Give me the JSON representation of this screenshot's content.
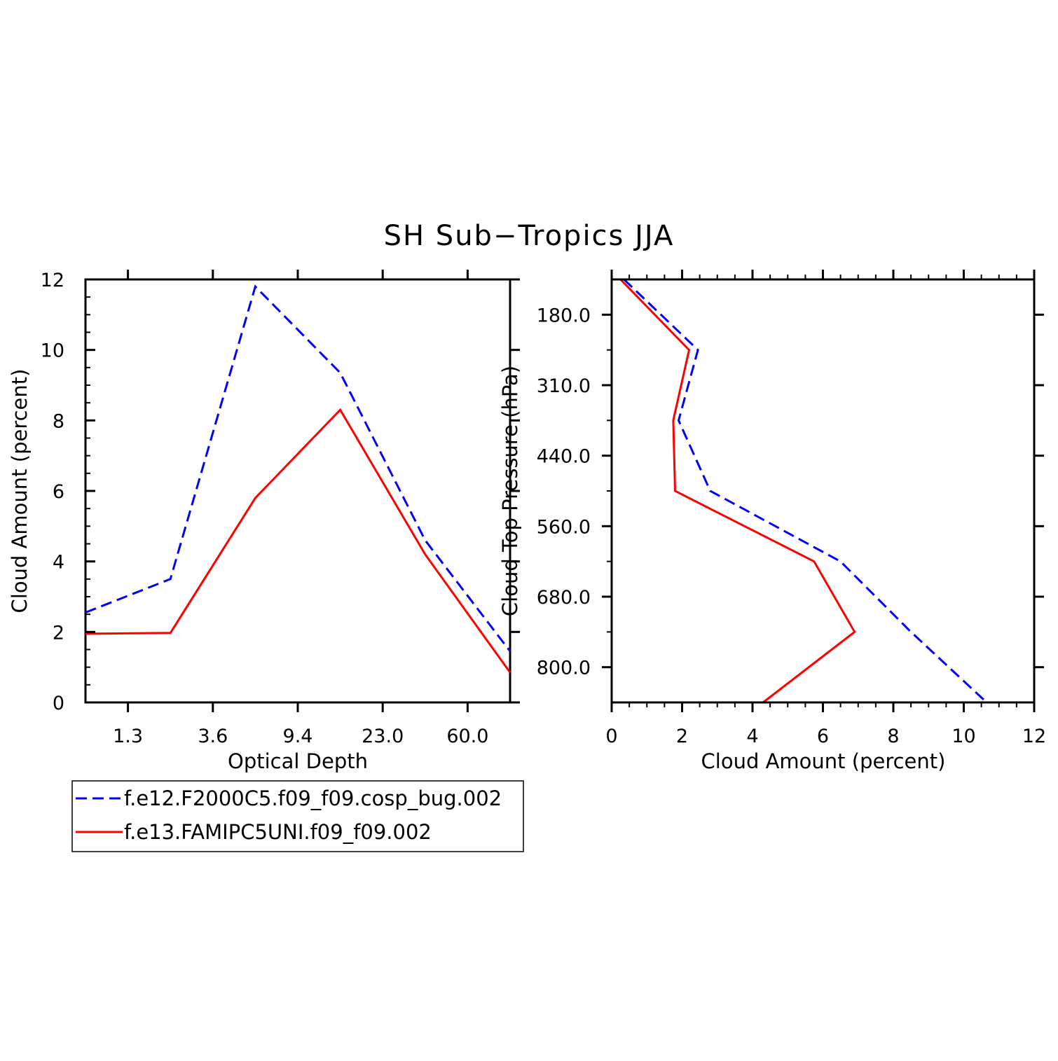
{
  "title": "SH Sub−Tropics JJA",
  "series_styles": [
    {
      "name": "f.e12.F2000C5.f09_f09.cosp_bug.002",
      "color": "#0000ff",
      "dash": "dashed"
    },
    {
      "name": "f.e13.FAMIPC5UNI.f09_f09.002",
      "color": "#ff0000",
      "dash": "solid"
    }
  ],
  "legend": {
    "placement": "below-left",
    "items": [
      {
        "label": "f.e12.F2000C5.f09_f09.cosp_bug.002"
      },
      {
        "label": "f.e13.FAMIPC5UNI.f09_f09.002"
      }
    ]
  },
  "chart_data": [
    {
      "type": "line",
      "title": "",
      "xlabel": "Optical Depth",
      "ylabel": "Cloud Amount (percent)",
      "x_tick_labels": [
        "1.3",
        "3.6",
        "9.4",
        "23.0",
        "60.0"
      ],
      "x_tick_index": [
        0.5,
        1.5,
        2.5,
        3.5,
        4.5
      ],
      "y_tick_labels": [
        "0",
        "2",
        "4",
        "6",
        "8",
        "10",
        "12"
      ],
      "y_ticks": [
        0,
        2,
        4,
        6,
        8,
        10,
        12
      ],
      "xlim": [
        0,
        5
      ],
      "ylim": [
        0,
        12
      ],
      "x": [
        0,
        1,
        2,
        3,
        4,
        5
      ],
      "series": [
        {
          "name": "f.e12.F2000C5.f09_f09.cosp_bug.002",
          "values": [
            2.55,
            3.5,
            11.8,
            9.35,
            4.6,
            1.45
          ]
        },
        {
          "name": "f.e13.FAMIPC5UNI.f09_f09.002",
          "values": [
            1.95,
            1.97,
            5.8,
            8.3,
            4.2,
            0.85
          ]
        }
      ]
    },
    {
      "type": "line",
      "title": "",
      "xlabel": "Cloud Amount (percent)",
      "ylabel": "Cloud Top Pressure (hPa)",
      "x_tick_labels": [
        "0",
        "2",
        "4",
        "6",
        "8",
        "10",
        "12"
      ],
      "x_ticks": [
        0,
        2,
        4,
        6,
        8,
        10,
        12
      ],
      "y_tick_labels": [
        "180.0",
        "310.0",
        "440.0",
        "560.0",
        "680.0",
        "800.0"
      ],
      "y_tick_index": [
        0.5,
        1.5,
        2.5,
        3.5,
        4.5,
        5.5
      ],
      "xlim": [
        0,
        12
      ],
      "ylim_index": [
        0,
        6
      ],
      "y_index": [
        0,
        1,
        2,
        3,
        4,
        5,
        6
      ],
      "series": [
        {
          "name": "f.e12.F2000C5.f09_f09.cosp_bug.002",
          "values": [
            0.35,
            2.45,
            1.9,
            2.8,
            6.5,
            8.5,
            10.65
          ]
        },
        {
          "name": "f.e13.FAMIPC5UNI.f09_f09.002",
          "values": [
            0.25,
            2.2,
            1.75,
            1.8,
            5.75,
            6.9,
            4.3
          ]
        }
      ]
    }
  ]
}
